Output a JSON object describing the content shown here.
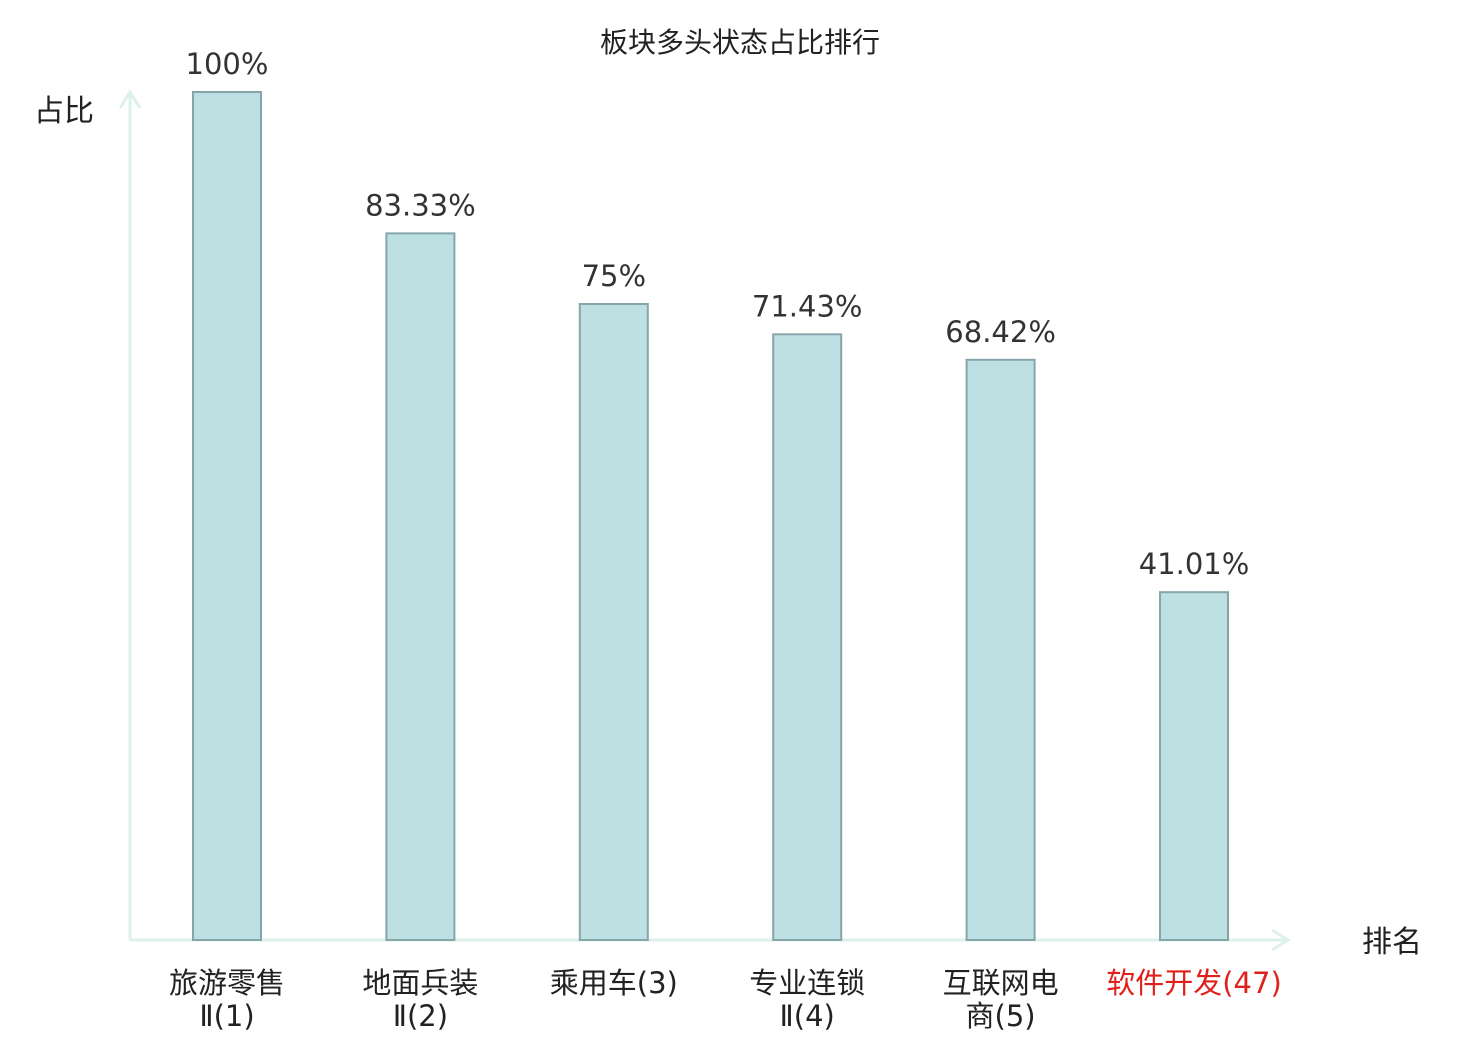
{
  "chart_data": {
    "type": "bar",
    "title": "板块多头状态占比排行",
    "ylabel": "占比",
    "xlabel": "排名",
    "ylim": [
      0,
      100
    ],
    "grid": false,
    "legend": "none",
    "categories": [
      {
        "lines": [
          "旅游零售",
          "Ⅱ(1)"
        ],
        "highlight": false
      },
      {
        "lines": [
          "地面兵装",
          "Ⅱ(2)"
        ],
        "highlight": false
      },
      {
        "lines": [
          "乘用车(3)"
        ],
        "highlight": false
      },
      {
        "lines": [
          "专业连锁",
          "Ⅱ(4)"
        ],
        "highlight": false
      },
      {
        "lines": [
          "互联网电",
          "商(5)"
        ],
        "highlight": false
      },
      {
        "lines": [
          "软件开发(47)"
        ],
        "highlight": true
      }
    ],
    "values": [
      100,
      83.33,
      75,
      71.43,
      68.42,
      41.01
    ],
    "value_labels": [
      "100%",
      "83.33%",
      "75%",
      "71.43%",
      "68.42%",
      "41.01%"
    ],
    "colors": {
      "bar_fill": "#bde0e3",
      "bar_stroke": "#86a5a8",
      "axis": "#dcf0ee",
      "text": "#222222",
      "highlight_text": "#e0201c"
    }
  }
}
